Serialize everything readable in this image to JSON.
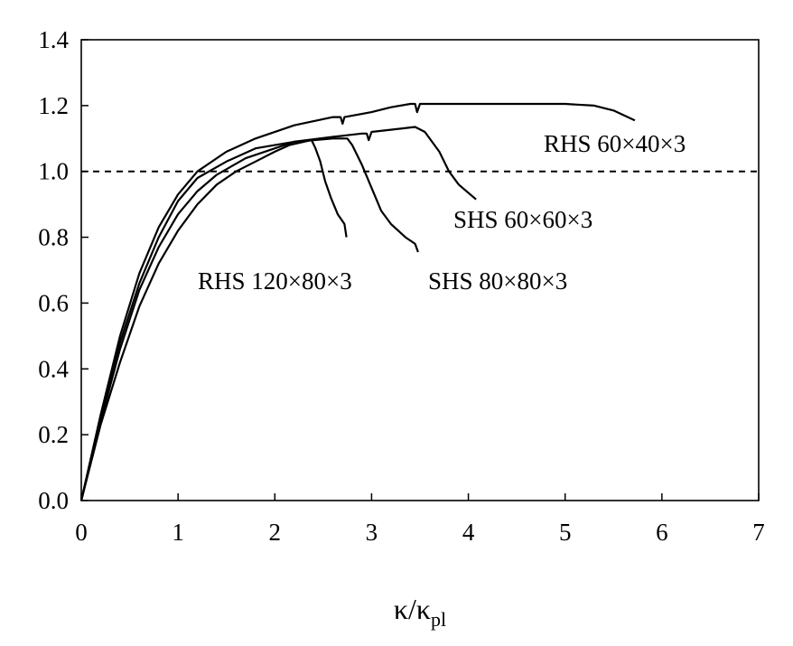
{
  "chart_data": {
    "type": "line",
    "title": "",
    "xlabel": "κ/κ",
    "xlabel_sub": "pl",
    "ylabel": "",
    "xlim": [
      0,
      7
    ],
    "ylim": [
      0,
      1.4
    ],
    "xticks": [
      "0",
      "1",
      "2",
      "3",
      "4",
      "5",
      "6",
      "7"
    ],
    "yticks": [
      "0.0",
      "0.2",
      "0.4",
      "0.6",
      "0.8",
      "1.0",
      "1.2",
      "1.4"
    ],
    "grid": false,
    "reference_line": {
      "y": 1.0,
      "style": "dashed"
    },
    "series": [
      {
        "name": "RHS 60×40×3",
        "points": [
          [
            0,
            0
          ],
          [
            0.2,
            0.26
          ],
          [
            0.4,
            0.5
          ],
          [
            0.6,
            0.69
          ],
          [
            0.8,
            0.83
          ],
          [
            1.0,
            0.93
          ],
          [
            1.2,
            1.0
          ],
          [
            1.5,
            1.06
          ],
          [
            1.8,
            1.1
          ],
          [
            2.2,
            1.14
          ],
          [
            2.6,
            1.165
          ],
          [
            2.68,
            1.165
          ],
          [
            2.7,
            1.145
          ],
          [
            2.72,
            1.165
          ],
          [
            3.0,
            1.18
          ],
          [
            3.2,
            1.195
          ],
          [
            3.4,
            1.205
          ],
          [
            3.45,
            1.205
          ],
          [
            3.47,
            1.18
          ],
          [
            3.5,
            1.205
          ],
          [
            4.0,
            1.205
          ],
          [
            4.5,
            1.205
          ],
          [
            5.0,
            1.205
          ],
          [
            5.3,
            1.2
          ],
          [
            5.5,
            1.185
          ],
          [
            5.72,
            1.155
          ]
        ]
      },
      {
        "name": "SHS 60×60×3",
        "points": [
          [
            0,
            0
          ],
          [
            0.2,
            0.25
          ],
          [
            0.4,
            0.48
          ],
          [
            0.6,
            0.66
          ],
          [
            0.8,
            0.8
          ],
          [
            1.0,
            0.91
          ],
          [
            1.2,
            0.98
          ],
          [
            1.5,
            1.03
          ],
          [
            1.8,
            1.07
          ],
          [
            2.2,
            1.09
          ],
          [
            2.6,
            1.105
          ],
          [
            2.9,
            1.115
          ],
          [
            2.95,
            1.115
          ],
          [
            2.97,
            1.095
          ],
          [
            3.0,
            1.12
          ],
          [
            3.3,
            1.13
          ],
          [
            3.45,
            1.135
          ],
          [
            3.55,
            1.12
          ],
          [
            3.7,
            1.06
          ],
          [
            3.8,
            1.0
          ],
          [
            3.9,
            0.96
          ],
          [
            4.08,
            0.915
          ]
        ]
      },
      {
        "name": "SHS 80×80×3",
        "points": [
          [
            0,
            0
          ],
          [
            0.2,
            0.24
          ],
          [
            0.4,
            0.46
          ],
          [
            0.6,
            0.64
          ],
          [
            0.8,
            0.77
          ],
          [
            1.0,
            0.87
          ],
          [
            1.2,
            0.94
          ],
          [
            1.4,
            0.99
          ],
          [
            1.7,
            1.04
          ],
          [
            2.0,
            1.07
          ],
          [
            2.2,
            1.09
          ],
          [
            2.4,
            1.095
          ],
          [
            2.6,
            1.1
          ],
          [
            2.75,
            1.1
          ],
          [
            2.8,
            1.08
          ],
          [
            2.9,
            1.02
          ],
          [
            3.0,
            0.95
          ],
          [
            3.1,
            0.88
          ],
          [
            3.2,
            0.84
          ],
          [
            3.35,
            0.8
          ],
          [
            3.45,
            0.78
          ],
          [
            3.48,
            0.755
          ]
        ]
      },
      {
        "name": "RHS 120×80×3",
        "points": [
          [
            0,
            0
          ],
          [
            0.2,
            0.23
          ],
          [
            0.4,
            0.42
          ],
          [
            0.6,
            0.59
          ],
          [
            0.8,
            0.72
          ],
          [
            1.0,
            0.82
          ],
          [
            1.2,
            0.9
          ],
          [
            1.4,
            0.96
          ],
          [
            1.6,
            1.0
          ],
          [
            1.8,
            1.03
          ],
          [
            2.0,
            1.06
          ],
          [
            2.15,
            1.08
          ],
          [
            2.3,
            1.09
          ],
          [
            2.38,
            1.095
          ],
          [
            2.42,
            1.07
          ],
          [
            2.47,
            1.03
          ],
          [
            2.52,
            0.97
          ],
          [
            2.58,
            0.92
          ],
          [
            2.65,
            0.87
          ],
          [
            2.72,
            0.84
          ],
          [
            2.74,
            0.8
          ]
        ]
      }
    ],
    "annotations": [
      {
        "text": "RHS 60×40×3",
        "series": 0
      },
      {
        "text": "SHS 60×60×3",
        "series": 1
      },
      {
        "text": "SHS 80×80×3",
        "series": 2
      },
      {
        "text": "RHS 120×80×3",
        "series": 3
      }
    ]
  }
}
